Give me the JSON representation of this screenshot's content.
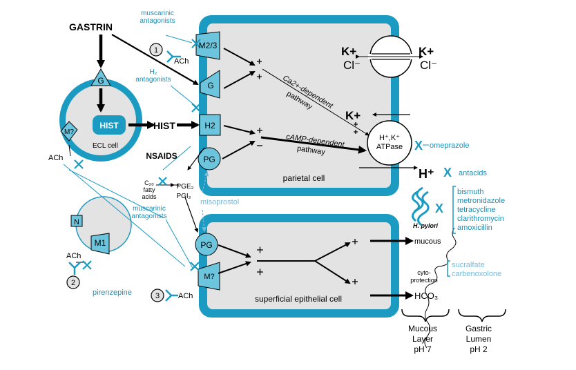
{
  "colors": {
    "membrane": "#1b9bc2",
    "receptor_fill": "#6cc5dc",
    "cell_fill": "#e3e3e3",
    "drug_text": "#1d8fb5",
    "light_drug_text": "#79b9d8",
    "ink": "#000000"
  },
  "labels": {
    "gastrin": "GASTRIN",
    "muscarinic_antagonists_top": [
      "muscarinic",
      "antagonists"
    ],
    "h2_antagonists": [
      "H₂",
      "antagonists"
    ],
    "muscarinic_antagonists_mid": [
      "muscarinic",
      "antagonists"
    ],
    "ach": "ACh",
    "num1": "1",
    "num2": "2",
    "num3": "3",
    "g_ecl": "G",
    "hist_box": "HIST",
    "ecl_cell": "ECL cell",
    "m_question": "M?",
    "hist_free": "HIST",
    "m23": "M2/3",
    "g_receptor": "G",
    "h2_receptor": "H2",
    "pg_parietal": "PG",
    "pg_epithelial": "PG",
    "m_epithelial": "M?",
    "n_receptor": "N",
    "m1_receptor": "M1",
    "nsaids": "NSAIDS",
    "c20": [
      "C₂₀",
      "fatty",
      "acids"
    ],
    "pge2": "PGE₂",
    "pgi2": "PGI₂",
    "misoprostol": "misoprostol",
    "pirenzepine": "pirenzepine",
    "ca_pathway": [
      "Ca2+-dependent",
      "pathway"
    ],
    "camp_pathway": [
      "cAMP-dependent",
      "pathway"
    ],
    "parietal_cell": "parietal cell",
    "superficial_cell": "superficial epithelial cell",
    "k_plus_left": "K+",
    "cl_minus_left": "Cl⁻",
    "k_plus_right": "K+",
    "cl_minus_right": "Cl⁻",
    "k_plus_pump": "K+",
    "atpase": [
      "H⁺,K⁺",
      "ATPase"
    ],
    "omeprazole": "omeprazole",
    "h_plus": "H⁺",
    "antacids": "antacids",
    "h_pylori": "H. pylori",
    "antibiotics": [
      "bismuth",
      "metronidazole",
      "tetracycline",
      "clarithromycin",
      "amoxicillin"
    ],
    "mucous": "mucous",
    "cytoprotection": [
      "cyto-",
      "protection"
    ],
    "protectants": [
      "sucralfate",
      "carbenoxolone"
    ],
    "hco3": "HCO₃",
    "mucous_layer": [
      "Mucous",
      "Layer",
      "pH 7"
    ],
    "gastric_lumen": [
      "Gastric",
      "Lumen",
      "pH 2"
    ],
    "x_mark": "X"
  }
}
